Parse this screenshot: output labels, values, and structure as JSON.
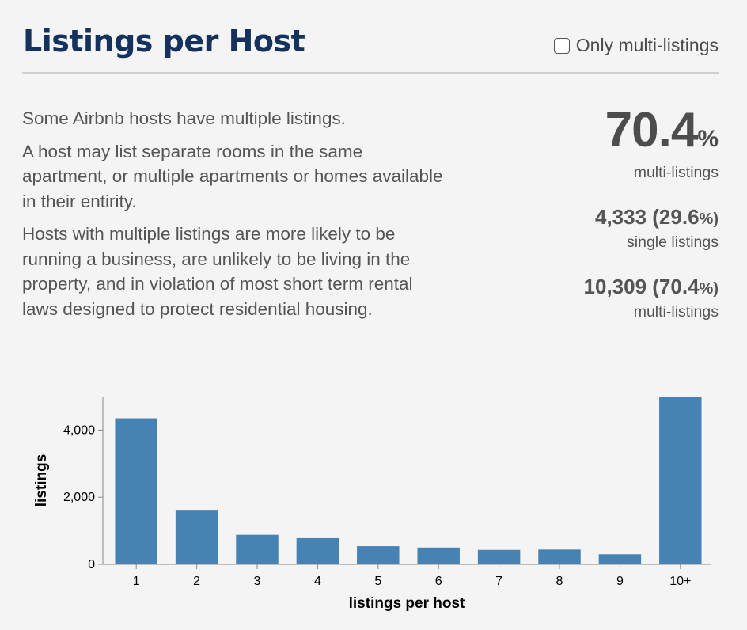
{
  "header": {
    "title": "Listings per Host",
    "toggle_label": "Only multi-listings"
  },
  "description": [
    "Some Airbnb hosts have multiple listings.",
    "A host may list separate rooms in the same apartment, or multiple apartments or homes available in their entirity.",
    "Hosts with multiple listings are more likely to be running a business, are unlikely to be living in the property, and in violation of most short term rental laws designed to protect residential housing."
  ],
  "stats": {
    "headline_value": "70.4",
    "headline_pct": "%",
    "headline_label": "multi-listings",
    "single_value": "4,333 (29.6",
    "single_pct": "%)",
    "single_label": "single listings",
    "multi_value": "10,309 (70.4",
    "multi_pct": "%)",
    "multi_label": "multi-listings"
  },
  "chart_data": {
    "type": "bar",
    "categories": [
      "1",
      "2",
      "3",
      "4",
      "5",
      "6",
      "7",
      "8",
      "9",
      "10+"
    ],
    "values": [
      4350,
      1600,
      880,
      780,
      540,
      500,
      430,
      440,
      300,
      5000
    ],
    "xlabel": "listings per host",
    "ylabel": "listings",
    "ylim": [
      0,
      5000
    ],
    "yticks": [
      0,
      2000,
      4000
    ],
    "ytick_labels": [
      "0",
      "2,000",
      "4,000"
    ],
    "bar_color": "#4682b4",
    "grid": false
  }
}
